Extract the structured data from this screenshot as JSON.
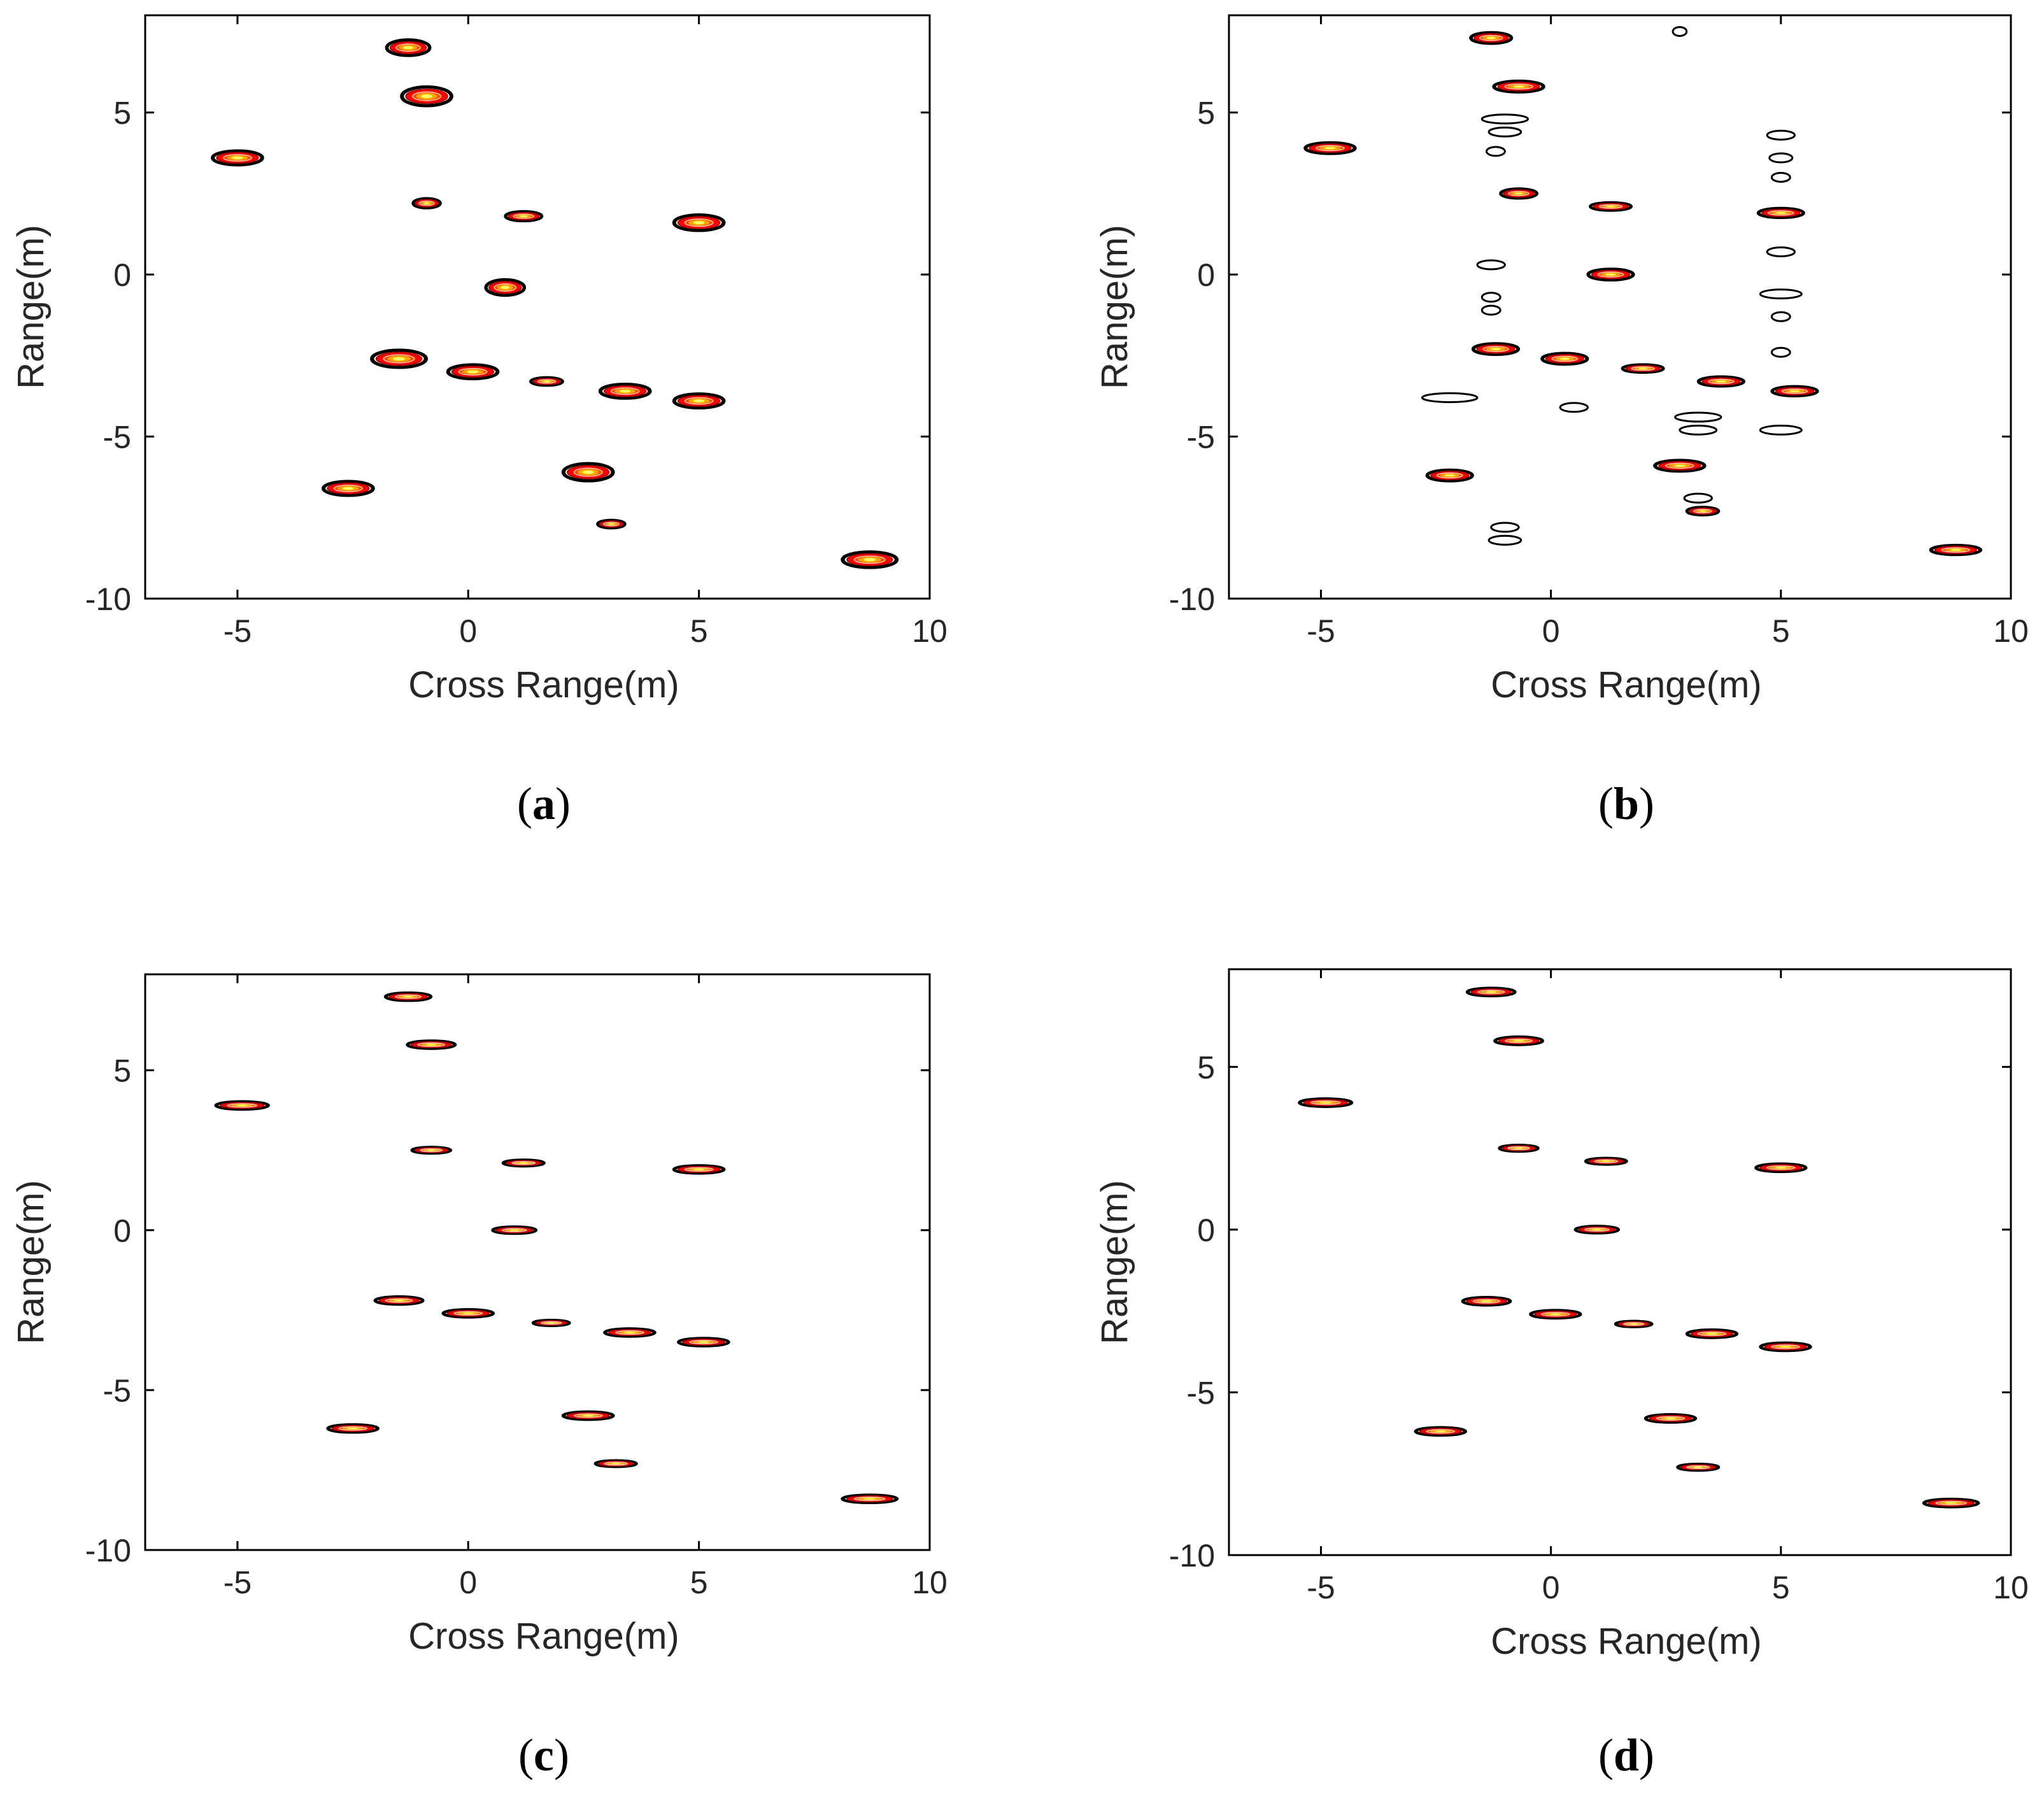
{
  "figure_title": "",
  "chart_data": [
    {
      "type": "contour",
      "panel": "a",
      "caption": "(a)",
      "caption_letter": "a",
      "xlabel": "Cross Range(m)",
      "ylabel": "Range(m)",
      "xlim": [
        -7,
        10
      ],
      "ylim": [
        -10,
        8
      ],
      "xticks": [
        -5,
        0,
        5,
        10
      ],
      "yticks": [
        5,
        0,
        -5,
        -10
      ],
      "xtick_labels": [
        "-5",
        "0",
        "5",
        "10"
      ],
      "ytick_labels": [
        "5",
        "0",
        "-5",
        "-10"
      ],
      "colormap": [
        "#000000",
        "#ff0000",
        "#ffa500",
        "#ffff66"
      ],
      "scatterers": [
        {
          "x": -5.0,
          "y": 3.6,
          "wx": 1.1,
          "wy": 0.45
        },
        {
          "x": -1.3,
          "y": 7.0,
          "wx": 0.95,
          "wy": 0.5
        },
        {
          "x": -0.9,
          "y": 5.5,
          "wx": 1.1,
          "wy": 0.6
        },
        {
          "x": -0.9,
          "y": 2.2,
          "wx": 0.6,
          "wy": 0.3
        },
        {
          "x": 1.2,
          "y": 1.8,
          "wx": 0.8,
          "wy": 0.3
        },
        {
          "x": 5.0,
          "y": 1.6,
          "wx": 1.1,
          "wy": 0.5
        },
        {
          "x": 0.8,
          "y": -0.4,
          "wx": 0.85,
          "wy": 0.5
        },
        {
          "x": -1.5,
          "y": -2.6,
          "wx": 1.2,
          "wy": 0.55
        },
        {
          "x": 0.1,
          "y": -3.0,
          "wx": 1.1,
          "wy": 0.45
        },
        {
          "x": 1.7,
          "y": -3.3,
          "wx": 0.7,
          "wy": 0.25
        },
        {
          "x": 3.4,
          "y": -3.6,
          "wx": 1.1,
          "wy": 0.45
        },
        {
          "x": 5.0,
          "y": -3.9,
          "wx": 1.1,
          "wy": 0.45
        },
        {
          "x": -2.6,
          "y": -6.6,
          "wx": 1.1,
          "wy": 0.45
        },
        {
          "x": 2.6,
          "y": -6.1,
          "wx": 1.1,
          "wy": 0.55
        },
        {
          "x": 3.1,
          "y": -7.7,
          "wx": 0.6,
          "wy": 0.25
        },
        {
          "x": 8.7,
          "y": -8.8,
          "wx": 1.2,
          "wy": 0.5
        }
      ],
      "noise_segments": []
    },
    {
      "type": "contour",
      "panel": "b",
      "caption": "(b)",
      "caption_letter": "b",
      "xlabel": "Cross Range(m)",
      "ylabel": "Range(m)",
      "xlim": [
        -7,
        10
      ],
      "ylim": [
        -10,
        8
      ],
      "xticks": [
        -5,
        0,
        5,
        10
      ],
      "yticks": [
        5,
        0,
        -5,
        -10
      ],
      "xtick_labels": [
        "-5",
        "0",
        "5",
        "10"
      ],
      "ytick_labels": [
        "5",
        "0",
        "-5",
        "-10"
      ],
      "colormap": [
        "#000000",
        "#ff0000",
        "#ffa500",
        "#ffff66"
      ],
      "scatterers": [
        {
          "x": -4.8,
          "y": 3.9,
          "wx": 1.1,
          "wy": 0.35
        },
        {
          "x": -1.3,
          "y": 7.3,
          "wx": 0.9,
          "wy": 0.35
        },
        {
          "x": -0.7,
          "y": 5.8,
          "wx": 1.1,
          "wy": 0.35
        },
        {
          "x": -0.7,
          "y": 2.5,
          "wx": 0.8,
          "wy": 0.3
        },
        {
          "x": 1.3,
          "y": 2.1,
          "wx": 0.9,
          "wy": 0.25
        },
        {
          "x": 5.0,
          "y": 1.9,
          "wx": 1.0,
          "wy": 0.3
        },
        {
          "x": 1.3,
          "y": 0.0,
          "wx": 1.0,
          "wy": 0.35
        },
        {
          "x": -1.2,
          "y": -2.3,
          "wx": 1.0,
          "wy": 0.35
        },
        {
          "x": 0.3,
          "y": -2.6,
          "wx": 1.0,
          "wy": 0.35
        },
        {
          "x": 2.0,
          "y": -2.9,
          "wx": 0.9,
          "wy": 0.25
        },
        {
          "x": 3.7,
          "y": -3.3,
          "wx": 1.0,
          "wy": 0.3
        },
        {
          "x": 5.3,
          "y": -3.6,
          "wx": 1.0,
          "wy": 0.3
        },
        {
          "x": -2.2,
          "y": -6.2,
          "wx": 1.0,
          "wy": 0.35
        },
        {
          "x": 2.8,
          "y": -5.9,
          "wx": 1.1,
          "wy": 0.35
        },
        {
          "x": 3.3,
          "y": -7.3,
          "wx": 0.7,
          "wy": 0.25
        },
        {
          "x": 8.8,
          "y": -8.5,
          "wx": 1.1,
          "wy": 0.3
        }
      ],
      "noise_segments": [
        {
          "x": -1.0,
          "y": 4.8,
          "w": 1.0
        },
        {
          "x": -1.0,
          "y": 4.4,
          "w": 0.7
        },
        {
          "x": -1.2,
          "y": 3.8,
          "w": 0.4
        },
        {
          "x": 5.0,
          "y": 4.3,
          "w": 0.6
        },
        {
          "x": 5.0,
          "y": 3.6,
          "w": 0.5
        },
        {
          "x": 5.0,
          "y": 3.0,
          "w": 0.4
        },
        {
          "x": 5.0,
          "y": 0.7,
          "w": 0.6
        },
        {
          "x": 5.0,
          "y": -0.6,
          "w": 0.9
        },
        {
          "x": 5.0,
          "y": -1.3,
          "w": 0.4
        },
        {
          "x": 5.0,
          "y": -2.4,
          "w": 0.4
        },
        {
          "x": 5.0,
          "y": -4.8,
          "w": 0.9
        },
        {
          "x": -1.3,
          "y": 0.3,
          "w": 0.6
        },
        {
          "x": -1.3,
          "y": -0.7,
          "w": 0.4
        },
        {
          "x": -1.3,
          "y": -1.1,
          "w": 0.4
        },
        {
          "x": -2.2,
          "y": -3.8,
          "w": 1.2
        },
        {
          "x": 0.5,
          "y": -4.1,
          "w": 0.6
        },
        {
          "x": 3.2,
          "y": -4.4,
          "w": 1.0
        },
        {
          "x": 3.2,
          "y": -4.8,
          "w": 0.8
        },
        {
          "x": -1.0,
          "y": -7.8,
          "w": 0.6
        },
        {
          "x": -1.0,
          "y": -8.2,
          "w": 0.7
        },
        {
          "x": 2.8,
          "y": 7.5,
          "w": 0.3
        },
        {
          "x": 3.2,
          "y": -6.9,
          "w": 0.6
        }
      ]
    },
    {
      "type": "contour",
      "panel": "c",
      "caption": "(c)",
      "caption_letter": "c",
      "xlabel": "Cross Range(m)",
      "ylabel": "Range(m)",
      "xlim": [
        -7,
        10
      ],
      "ylim": [
        -10,
        8
      ],
      "xticks": [
        -5,
        0,
        5,
        10
      ],
      "yticks": [
        5,
        0,
        -5,
        -10
      ],
      "xtick_labels": [
        "-5",
        "0",
        "5",
        "10"
      ],
      "ytick_labels": [
        "5",
        "0",
        "-5",
        "-10"
      ],
      "colormap": [
        "#000000",
        "#ff0000",
        "#ffa500",
        "#ffff66"
      ],
      "scatterers": [
        {
          "x": -4.9,
          "y": 3.9,
          "wx": 1.15,
          "wy": 0.25
        },
        {
          "x": -1.3,
          "y": 7.3,
          "wx": 1.0,
          "wy": 0.25
        },
        {
          "x": -0.8,
          "y": 5.8,
          "wx": 1.05,
          "wy": 0.25
        },
        {
          "x": -0.8,
          "y": 2.5,
          "wx": 0.85,
          "wy": 0.2
        },
        {
          "x": 1.2,
          "y": 2.1,
          "wx": 0.9,
          "wy": 0.2
        },
        {
          "x": 5.0,
          "y": 1.9,
          "wx": 1.1,
          "wy": 0.25
        },
        {
          "x": 1.0,
          "y": 0.0,
          "wx": 0.95,
          "wy": 0.22
        },
        {
          "x": -1.5,
          "y": -2.2,
          "wx": 1.05,
          "wy": 0.25
        },
        {
          "x": 0.0,
          "y": -2.6,
          "wx": 1.1,
          "wy": 0.25
        },
        {
          "x": 1.8,
          "y": -2.9,
          "wx": 0.8,
          "wy": 0.18
        },
        {
          "x": 3.5,
          "y": -3.2,
          "wx": 1.1,
          "wy": 0.25
        },
        {
          "x": 5.1,
          "y": -3.5,
          "wx": 1.1,
          "wy": 0.25
        },
        {
          "x": -2.5,
          "y": -6.2,
          "wx": 1.1,
          "wy": 0.25
        },
        {
          "x": 2.6,
          "y": -5.8,
          "wx": 1.1,
          "wy": 0.25
        },
        {
          "x": 3.2,
          "y": -7.3,
          "wx": 0.9,
          "wy": 0.2
        },
        {
          "x": 8.7,
          "y": -8.4,
          "wx": 1.2,
          "wy": 0.25
        }
      ],
      "noise_segments": []
    },
    {
      "type": "contour",
      "panel": "d",
      "caption": "(d)",
      "caption_letter": "d",
      "xlabel": "Cross Range(m)",
      "ylabel": "Range(m)",
      "xlim": [
        -7,
        10
      ],
      "ylim": [
        -10,
        8
      ],
      "xticks": [
        -5,
        0,
        5,
        10
      ],
      "yticks": [
        5,
        0,
        -5,
        -10
      ],
      "xtick_labels": [
        "-5",
        "0",
        "5",
        "10"
      ],
      "ytick_labels": [
        "5",
        "0",
        "-5",
        "-10"
      ],
      "colormap": [
        "#000000",
        "#ff0000",
        "#ffa500",
        "#ffff66"
      ],
      "scatterers": [
        {
          "x": -4.9,
          "y": 3.9,
          "wx": 1.15,
          "wy": 0.25
        },
        {
          "x": -1.3,
          "y": 7.3,
          "wx": 1.05,
          "wy": 0.25
        },
        {
          "x": -0.7,
          "y": 5.8,
          "wx": 1.05,
          "wy": 0.25
        },
        {
          "x": -0.7,
          "y": 2.5,
          "wx": 0.85,
          "wy": 0.2
        },
        {
          "x": 1.2,
          "y": 2.1,
          "wx": 0.9,
          "wy": 0.2
        },
        {
          "x": 5.0,
          "y": 1.9,
          "wx": 1.1,
          "wy": 0.25
        },
        {
          "x": 1.0,
          "y": 0.0,
          "wx": 0.95,
          "wy": 0.22
        },
        {
          "x": -1.4,
          "y": -2.2,
          "wx": 1.05,
          "wy": 0.25
        },
        {
          "x": 0.1,
          "y": -2.6,
          "wx": 1.1,
          "wy": 0.25
        },
        {
          "x": 1.8,
          "y": -2.9,
          "wx": 0.8,
          "wy": 0.18
        },
        {
          "x": 3.5,
          "y": -3.2,
          "wx": 1.1,
          "wy": 0.25
        },
        {
          "x": 5.1,
          "y": -3.6,
          "wx": 1.1,
          "wy": 0.25
        },
        {
          "x": -2.4,
          "y": -6.2,
          "wx": 1.1,
          "wy": 0.25
        },
        {
          "x": 2.6,
          "y": -5.8,
          "wx": 1.1,
          "wy": 0.25
        },
        {
          "x": 3.2,
          "y": -7.3,
          "wx": 0.9,
          "wy": 0.2
        },
        {
          "x": 8.7,
          "y": -8.4,
          "wx": 1.2,
          "wy": 0.25
        }
      ],
      "noise_segments": []
    }
  ]
}
